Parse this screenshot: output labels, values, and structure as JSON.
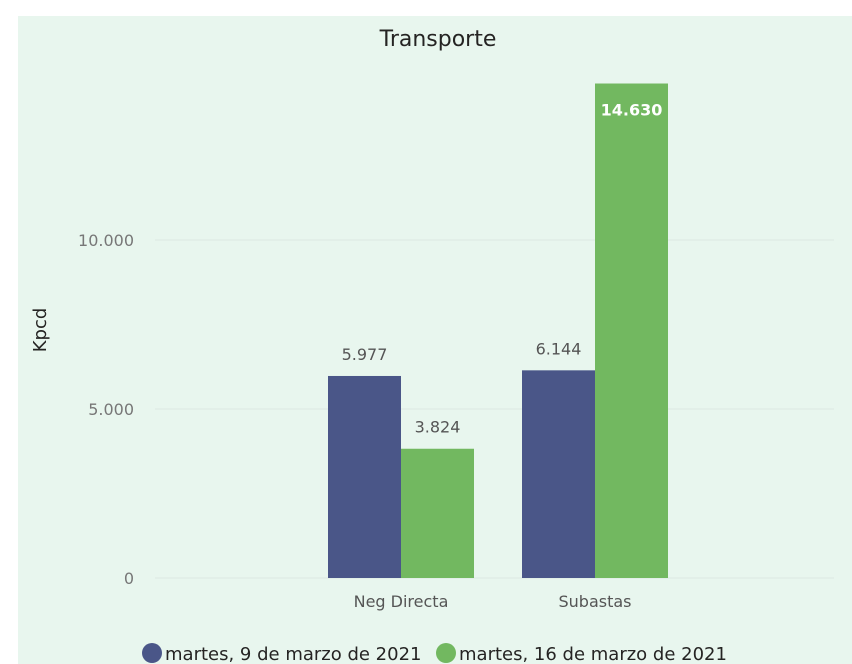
{
  "chart_data": {
    "type": "bar",
    "title": "Transporte",
    "ylabel": "Kpcd",
    "xlabel": "",
    "categories": [
      "Neg Directa",
      "Subastas"
    ],
    "series": [
      {
        "name": "martes, 9 de marzo de 2021",
        "values": [
          5977,
          6144
        ],
        "labels": [
          "5.977",
          "6.144"
        ],
        "color": "#4a5688"
      },
      {
        "name": "martes, 16 de marzo de 2021",
        "values": [
          3824,
          14630
        ],
        "labels": [
          "3.824",
          "14.630"
        ],
        "color": "#72b860"
      }
    ],
    "ylim": [
      0,
      15000
    ],
    "yticks": [
      {
        "value": 0,
        "label": "0"
      },
      {
        "value": 5000,
        "label": "5.000"
      },
      {
        "value": 10000,
        "label": "10.000"
      }
    ],
    "grid": true,
    "legend_position": "bottom",
    "panel_color": "#e8f6ee"
  }
}
